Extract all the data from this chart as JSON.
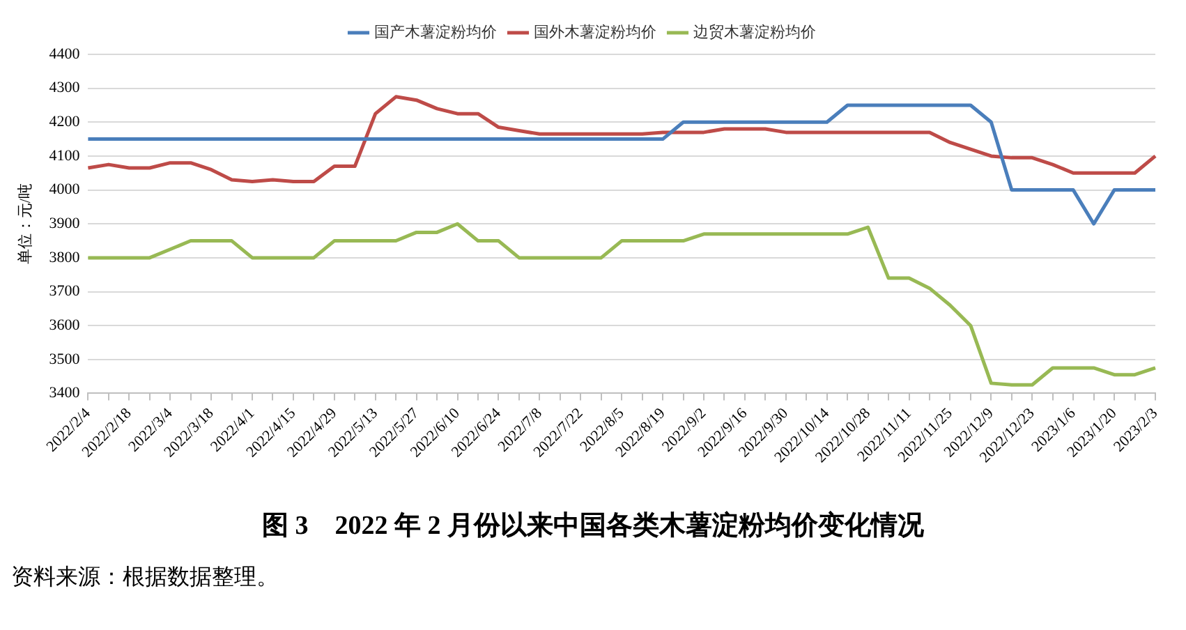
{
  "chart_data": {
    "type": "line",
    "title": "图 3　2022 年 2 月份以来中国各类木薯淀粉均价变化情况",
    "ylabel": "单位：元/吨",
    "annotations": [
      "资料来源：根据数据整理。"
    ],
    "categories": [
      "2022/2/4",
      null,
      "2022/2/18",
      null,
      "2022/3/4",
      null,
      "2022/3/18",
      null,
      "2022/4/1",
      null,
      "2022/4/15",
      null,
      "2022/4/29",
      null,
      "2022/5/13",
      null,
      "2022/5/27",
      null,
      "2022/6/10",
      null,
      "2022/6/24",
      null,
      "2022/7/8",
      null,
      "2022/7/22",
      null,
      "2022/8/5",
      null,
      "2022/8/19",
      null,
      "2022/9/2",
      null,
      "2022/9/16",
      null,
      "2022/9/30",
      null,
      "2022/10/14",
      null,
      "2022/10/28",
      null,
      "2022/11/11",
      null,
      "2022/11/25",
      null,
      "2022/12/9",
      null,
      "2022/12/23",
      null,
      "2023/1/6",
      null,
      "2023/1/20",
      null,
      "2023/2/3"
    ],
    "series": [
      {
        "name": "国产木薯淀粉均价",
        "color": "#4a7ebb",
        "values": [
          4150,
          4150,
          4150,
          4150,
          4150,
          4150,
          4150,
          4150,
          4150,
          4150,
          4150,
          4150,
          4150,
          4150,
          4150,
          4150,
          4150,
          4150,
          4150,
          4150,
          4150,
          4150,
          4150,
          4150,
          4150,
          4150,
          4150,
          4150,
          4150,
          4200,
          4200,
          4200,
          4200,
          4200,
          4200,
          4200,
          4200,
          4250,
          4250,
          4250,
          4250,
          4250,
          4250,
          4250,
          4200,
          4000,
          4000,
          4000,
          4000,
          3900,
          4000,
          4000,
          4000
        ]
      },
      {
        "name": "国外木薯淀粉均价",
        "color": "#be4b48",
        "values": [
          4065,
          4075,
          4065,
          4065,
          4080,
          4080,
          4060,
          4030,
          4025,
          4030,
          4025,
          4025,
          4070,
          4070,
          4225,
          4275,
          4265,
          4240,
          4225,
          4225,
          4185,
          4175,
          4165,
          4165,
          4165,
          4165,
          4165,
          4165,
          4170,
          4170,
          4170,
          4180,
          4180,
          4180,
          4170,
          4170,
          4170,
          4170,
          4170,
          4170,
          4170,
          4170,
          4140,
          4120,
          4100,
          4095,
          4095,
          4075,
          4050,
          4050,
          4050,
          4050,
          4100
        ]
      },
      {
        "name": "边贸木薯淀粉均价",
        "color": "#98b954",
        "values": [
          3800,
          3800,
          3800,
          3800,
          3825,
          3850,
          3850,
          3850,
          3800,
          3800,
          3800,
          3800,
          3850,
          3850,
          3850,
          3850,
          3875,
          3875,
          3900,
          3850,
          3850,
          3800,
          3800,
          3800,
          3800,
          3800,
          3850,
          3850,
          3850,
          3850,
          3870,
          3870,
          3870,
          3870,
          3870,
          3870,
          3870,
          3870,
          3890,
          3740,
          3740,
          3710,
          3660,
          3600,
          3430,
          3425,
          3425,
          3475,
          3475,
          3475,
          3455,
          3455,
          3475
        ]
      }
    ],
    "ylim": [
      3400,
      4400
    ],
    "yticks": [
      3400,
      3500,
      3600,
      3700,
      3800,
      3900,
      4000,
      4100,
      4200,
      4300,
      4400
    ],
    "grid": "y",
    "legend": "top",
    "marker": "none",
    "line_style": "solid"
  }
}
